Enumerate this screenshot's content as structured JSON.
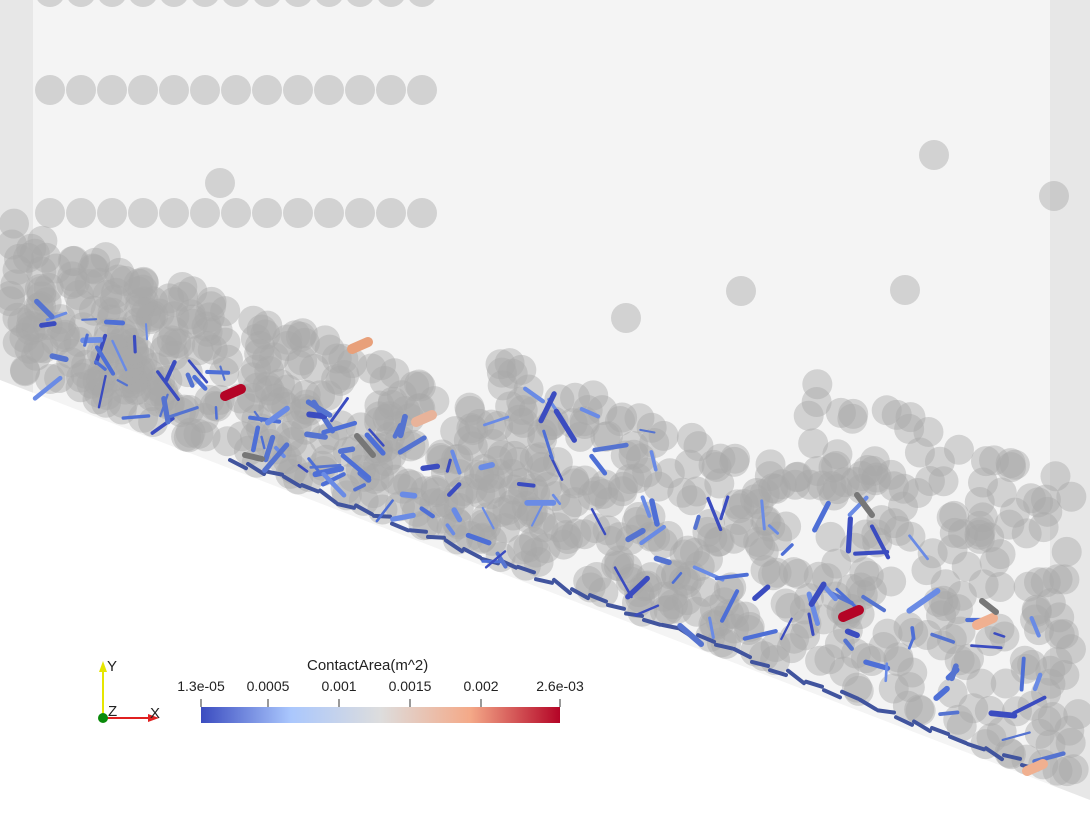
{
  "legend": {
    "title": "ContactArea(m^2)",
    "ticks": [
      "1.3e-05",
      "0.0005",
      "0.001",
      "0.0015",
      "0.002",
      "2.6e-03"
    ],
    "range": [
      1.3e-05,
      0.0026
    ],
    "colors": [
      "#3b4cc0",
      "#aac7fd",
      "#dddddd",
      "#f4a988",
      "#b40426"
    ]
  },
  "axes": {
    "y_label": "Y",
    "z_label": "Z",
    "x_label": "X"
  },
  "colors": {
    "background": "#f4f4f4",
    "side_wall": "#e6e6e6",
    "particle": "#b5b5b5",
    "y_axis": "#e6e600",
    "z_axis": "#0a8a0a",
    "x_axis": "#e02020"
  }
}
